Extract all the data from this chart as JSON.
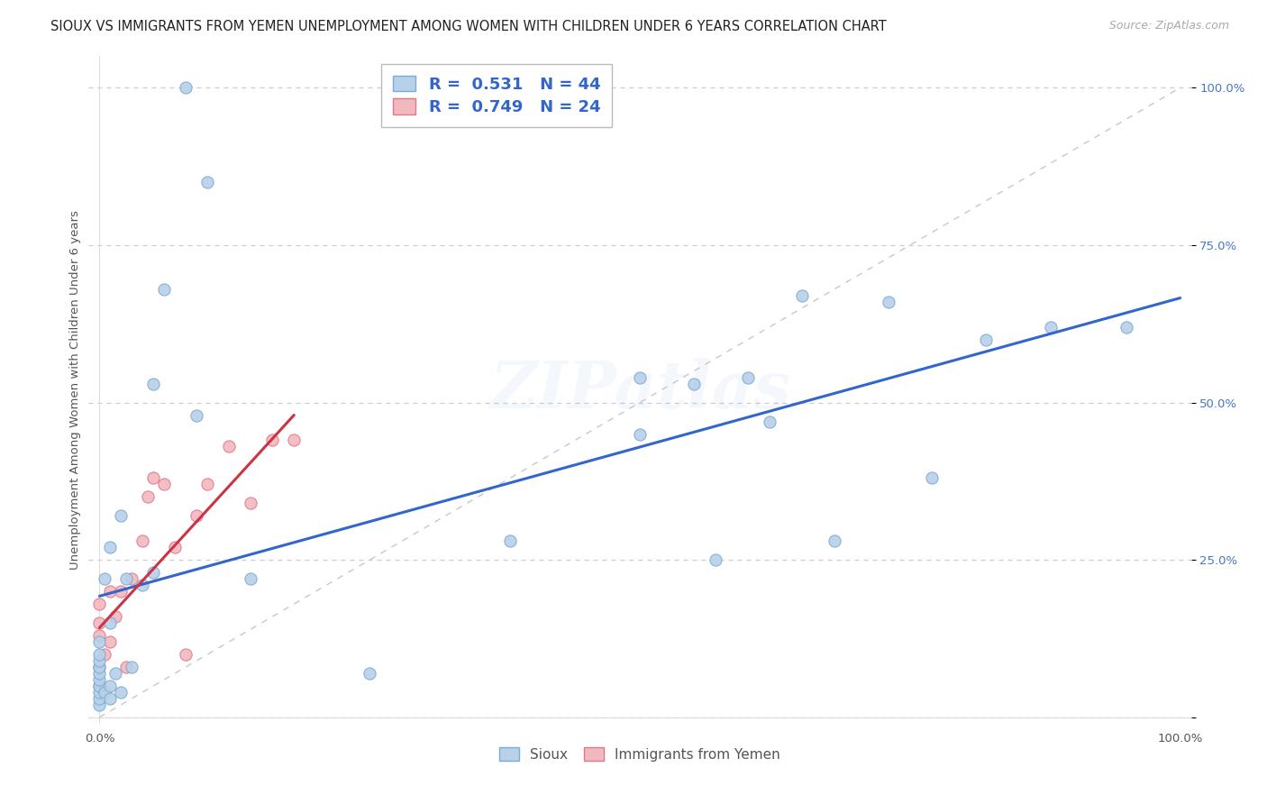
{
  "title": "SIOUX VS IMMIGRANTS FROM YEMEN UNEMPLOYMENT AMONG WOMEN WITH CHILDREN UNDER 6 YEARS CORRELATION CHART",
  "source": "Source: ZipAtlas.com",
  "ylabel": "Unemployment Among Women with Children Under 6 years",
  "watermark": "ZIPatlas",
  "background_color": "#ffffff",
  "grid_color": "#cccccc",
  "sioux_color": "#b8d0e8",
  "sioux_edge_color": "#7aadd4",
  "yemen_color": "#f2b8c0",
  "yemen_edge_color": "#e07888",
  "sioux_line_color": "#3366cc",
  "yemen_line_color": "#cc3344",
  "diagonal_color": "#c8c8c8",
  "R_sioux": 0.531,
  "N_sioux": 44,
  "R_yemen": 0.749,
  "N_yemen": 24,
  "sioux_label": "Sioux",
  "yemen_label": "Immigrants from Yemen",
  "xlim": [
    -0.01,
    1.01
  ],
  "ylim": [
    -0.01,
    1.05
  ],
  "xtick_positions": [
    0.0,
    0.25,
    0.5,
    0.75,
    1.0
  ],
  "ytick_positions": [
    0.0,
    0.25,
    0.5,
    0.75,
    1.0
  ],
  "xticklabels": [
    "0.0%",
    "",
    "",
    "",
    "100.0%"
  ],
  "yticklabels": [
    "",
    "25.0%",
    "50.0%",
    "75.0%",
    "100.0%"
  ],
  "sioux_x": [
    0.0,
    0.0,
    0.0,
    0.0,
    0.0,
    0.0,
    0.0,
    0.0,
    0.0,
    0.0,
    0.005,
    0.005,
    0.01,
    0.01,
    0.01,
    0.01,
    0.015,
    0.02,
    0.02,
    0.025,
    0.03,
    0.04,
    0.05,
    0.05,
    0.06,
    0.08,
    0.09,
    0.1,
    0.14,
    0.25,
    0.38,
    0.5,
    0.5,
    0.55,
    0.57,
    0.6,
    0.62,
    0.65,
    0.68,
    0.73,
    0.77,
    0.82,
    0.88,
    0.95
  ],
  "sioux_y": [
    0.02,
    0.03,
    0.04,
    0.05,
    0.06,
    0.07,
    0.08,
    0.09,
    0.1,
    0.12,
    0.04,
    0.22,
    0.03,
    0.05,
    0.15,
    0.27,
    0.07,
    0.04,
    0.32,
    0.22,
    0.08,
    0.21,
    0.23,
    0.53,
    0.68,
    1.0,
    0.48,
    0.85,
    0.22,
    0.07,
    0.28,
    0.45,
    0.54,
    0.53,
    0.25,
    0.54,
    0.47,
    0.67,
    0.28,
    0.66,
    0.38,
    0.6,
    0.62,
    0.62
  ],
  "yemen_x": [
    0.0,
    0.0,
    0.0,
    0.0,
    0.0,
    0.005,
    0.01,
    0.01,
    0.015,
    0.02,
    0.025,
    0.03,
    0.04,
    0.045,
    0.05,
    0.06,
    0.07,
    0.08,
    0.09,
    0.1,
    0.12,
    0.14,
    0.16,
    0.18
  ],
  "yemen_y": [
    0.05,
    0.08,
    0.13,
    0.15,
    0.18,
    0.1,
    0.12,
    0.2,
    0.16,
    0.2,
    0.08,
    0.22,
    0.28,
    0.35,
    0.38,
    0.37,
    0.27,
    0.1,
    0.32,
    0.37,
    0.43,
    0.34,
    0.44,
    0.44
  ],
  "marker_size": 90,
  "title_fontsize": 10.5,
  "source_fontsize": 9,
  "axis_label_fontsize": 9.5,
  "tick_fontsize": 9.5,
  "legend_fontsize": 13,
  "watermark_fontsize": 52,
  "watermark_alpha": 0.07,
  "watermark_color": "#6699cc"
}
